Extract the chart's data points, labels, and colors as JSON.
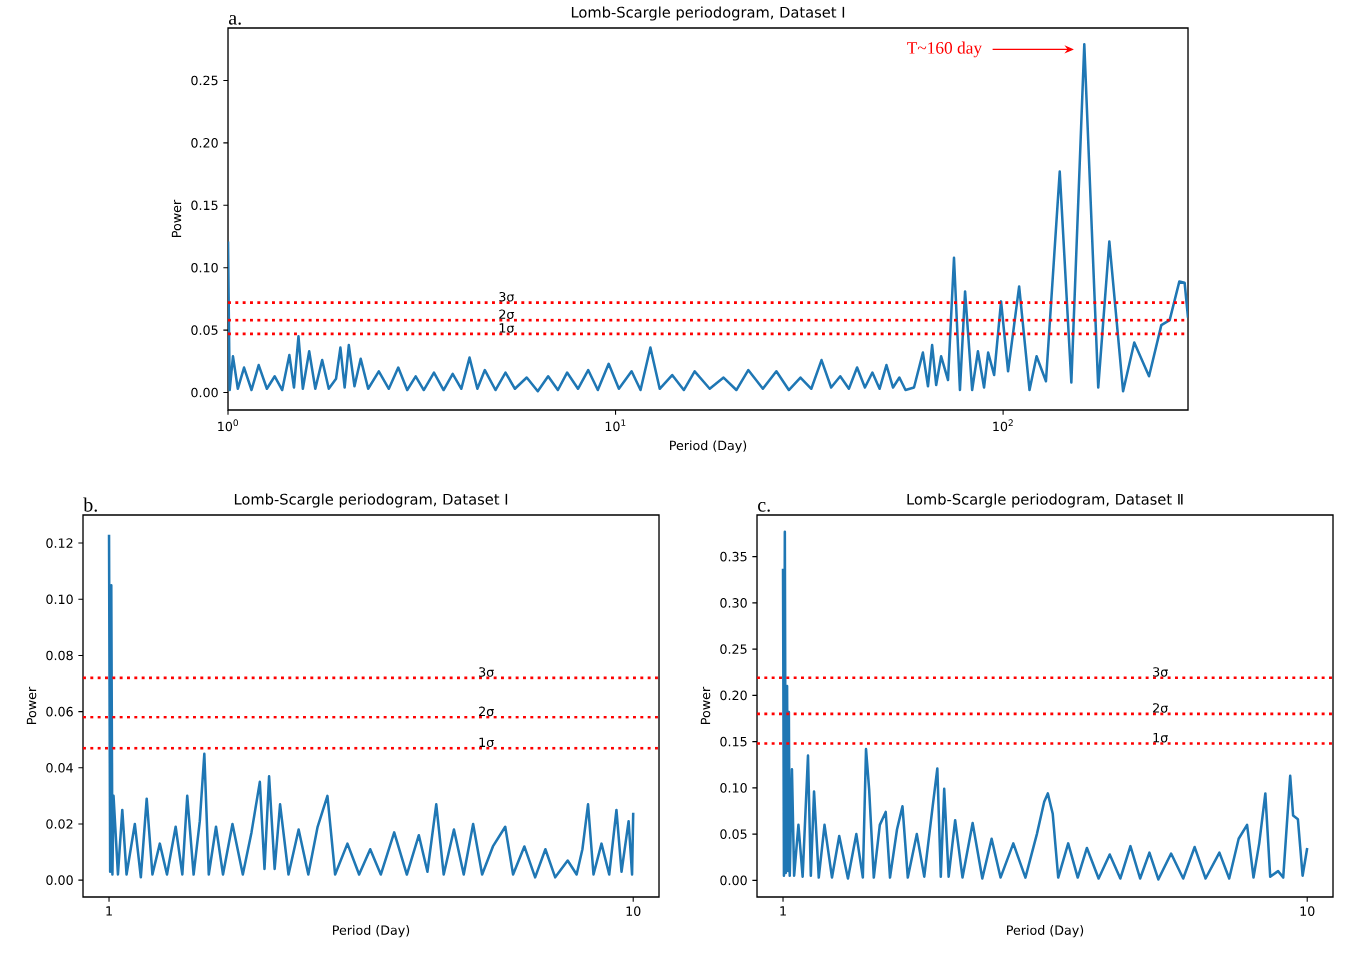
{
  "chart_data": [
    {
      "type": "line",
      "title": "Lomb-Scargle periodogram, Dataset Ⅰ",
      "xlabel": "Period (Day)",
      "ylabel": "Power",
      "log": "x",
      "color": "#1f77b4",
      "xlim": [
        1,
        300
      ],
      "ylim": [
        -0.014,
        0.292
      ],
      "xticks": [
        {
          "value": 1,
          "label": "10$^{0}$"
        },
        {
          "value": 10,
          "label": "10$^{1}$"
        },
        {
          "value": 100,
          "label": "10$^{2}$"
        }
      ],
      "yticks": [
        {
          "value": 0,
          "label": "0.00"
        },
        {
          "value": 0.05,
          "label": "0.05"
        },
        {
          "value": 0.1,
          "label": "0.10"
        },
        {
          "value": 0.15,
          "label": "0.15"
        },
        {
          "value": 0.2,
          "label": "0.20"
        },
        {
          "value": 0.25,
          "label": "0.25"
        }
      ],
      "x": [
        1.0,
        1.01,
        1.03,
        1.06,
        1.1,
        1.15,
        1.2,
        1.26,
        1.32,
        1.38,
        1.44,
        1.48,
        1.52,
        1.56,
        1.62,
        1.68,
        1.75,
        1.82,
        1.9,
        1.95,
        2.0,
        2.05,
        2.12,
        2.2,
        2.3,
        2.45,
        2.6,
        2.75,
        2.9,
        3.05,
        3.2,
        3.4,
        3.6,
        3.8,
        4.0,
        4.2,
        4.4,
        4.6,
        4.9,
        5.2,
        5.5,
        5.9,
        6.3,
        6.7,
        7.1,
        7.5,
        8.0,
        8.5,
        9.0,
        9.6,
        10.2,
        11.0,
        11.6,
        12.3,
        13.0,
        14,
        15,
        16,
        17.5,
        19,
        20.5,
        22,
        24,
        26,
        28,
        30,
        32,
        34,
        36,
        38,
        40,
        42,
        44,
        46,
        48,
        50,
        52,
        54,
        56,
        58.9,
        62.1,
        64,
        65.6,
        67.2,
        69.2,
        72.1,
        74.7,
        77.4,
        79.8,
        83.2,
        86.1,
        89.3,
        91.5,
        94.8,
        98.8,
        103,
        110,
        117,
        122,
        129,
        140,
        150,
        162,
        176,
        188,
        204,
        218,
        238,
        256,
        269,
        285,
        294,
        300
      ],
      "values": [
        0.121,
        0.002,
        0.029,
        0.003,
        0.02,
        0.002,
        0.022,
        0.003,
        0.013,
        0.002,
        0.03,
        0.004,
        0.045,
        0.003,
        0.033,
        0.003,
        0.026,
        0.003,
        0.011,
        0.036,
        0.004,
        0.038,
        0.005,
        0.027,
        0.003,
        0.017,
        0.003,
        0.02,
        0.002,
        0.013,
        0.002,
        0.016,
        0.002,
        0.015,
        0.003,
        0.028,
        0.003,
        0.018,
        0.002,
        0.016,
        0.003,
        0.012,
        0.001,
        0.013,
        0.002,
        0.016,
        0.003,
        0.018,
        0.002,
        0.023,
        0.003,
        0.017,
        0.002,
        0.036,
        0.003,
        0.014,
        0.002,
        0.017,
        0.003,
        0.012,
        0.002,
        0.018,
        0.003,
        0.017,
        0.002,
        0.012,
        0.003,
        0.026,
        0.004,
        0.013,
        0.003,
        0.02,
        0.004,
        0.016,
        0.003,
        0.022,
        0.004,
        0.012,
        0.002,
        0.004,
        0.032,
        0.005,
        0.038,
        0.006,
        0.029,
        0.01,
        0.108,
        0.002,
        0.081,
        0.002,
        0.033,
        0.004,
        0.032,
        0.014,
        0.073,
        0.017,
        0.085,
        0.002,
        0.029,
        0.009,
        0.177,
        0.008,
        0.279,
        0.004,
        0.121,
        0.001,
        0.04,
        0.013,
        0.054,
        0.058,
        0.089,
        0.088,
        0.06
      ],
      "ref_lines": [
        {
          "axis": "y",
          "value": 0.072,
          "label": "3σ",
          "color": "#ff0000",
          "line_style": "dotted"
        },
        {
          "axis": "y",
          "value": 0.058,
          "label": "2σ",
          "color": "#ff0000",
          "line_style": "dotted"
        },
        {
          "axis": "y",
          "value": 0.047,
          "label": "1σ",
          "color": "#ff0000",
          "line_style": "dotted"
        }
      ],
      "annotations": [
        "a.",
        "T~160 day"
      ]
    },
    {
      "type": "line",
      "title": "Lomb-Scargle periodogram, Dataset Ⅰ",
      "xlabel": "Period (Day)",
      "ylabel": "Power",
      "log": "x",
      "color": "#1f77b4",
      "xlim": [
        0.892,
        11.2
      ],
      "ylim": [
        -0.006,
        0.13
      ],
      "xticks": [
        1,
        10
      ],
      "yticks": [
        {
          "value": 0,
          "label": "0.00"
        },
        {
          "value": 0.02,
          "label": "0.02"
        },
        {
          "value": 0.04,
          "label": "0.04"
        },
        {
          "value": 0.06,
          "label": "0.06"
        },
        {
          "value": 0.08,
          "label": "0.08"
        },
        {
          "value": 0.1,
          "label": "0.10"
        },
        {
          "value": 0.12,
          "label": "0.12"
        }
      ],
      "x": [
        1.0,
        1.005,
        1.01,
        1.015,
        1.02,
        1.04,
        1.06,
        1.08,
        1.12,
        1.15,
        1.18,
        1.21,
        1.25,
        1.29,
        1.34,
        1.38,
        1.41,
        1.45,
        1.49,
        1.52,
        1.55,
        1.6,
        1.65,
        1.72,
        1.8,
        1.87,
        1.94,
        1.98,
        2.02,
        2.07,
        2.12,
        2.2,
        2.3,
        2.4,
        2.5,
        2.61,
        2.7,
        2.85,
        3.0,
        3.15,
        3.3,
        3.5,
        3.7,
        3.9,
        4.05,
        4.21,
        4.35,
        4.55,
        4.75,
        4.95,
        5.15,
        5.4,
        5.7,
        5.9,
        6.2,
        6.5,
        6.8,
        7.1,
        7.5,
        7.8,
        8.0,
        8.2,
        8.4,
        8.7,
        9.0,
        9.29,
        9.5,
        9.8,
        9.95,
        10.0
      ],
      "values": [
        0.123,
        0.003,
        0.105,
        0.002,
        0.03,
        0.002,
        0.025,
        0.002,
        0.02,
        0.001,
        0.029,
        0.002,
        0.013,
        0.002,
        0.019,
        0.002,
        0.03,
        0.002,
        0.021,
        0.045,
        0.002,
        0.019,
        0.002,
        0.02,
        0.002,
        0.017,
        0.035,
        0.004,
        0.037,
        0.004,
        0.027,
        0.002,
        0.018,
        0.002,
        0.019,
        0.03,
        0.002,
        0.013,
        0.002,
        0.011,
        0.002,
        0.017,
        0.002,
        0.016,
        0.003,
        0.027,
        0.002,
        0.018,
        0.002,
        0.02,
        0.002,
        0.012,
        0.019,
        0.002,
        0.012,
        0.001,
        0.011,
        0.001,
        0.007,
        0.002,
        0.011,
        0.027,
        0.002,
        0.013,
        0.002,
        0.025,
        0.003,
        0.021,
        0.002,
        0.024
      ],
      "ref_lines": [
        {
          "axis": "y",
          "value": 0.072,
          "label": "3σ",
          "color": "#ff0000",
          "line_style": "dotted"
        },
        {
          "axis": "y",
          "value": 0.058,
          "label": "2σ",
          "color": "#ff0000",
          "line_style": "dotted"
        },
        {
          "axis": "y",
          "value": 0.047,
          "label": "1σ",
          "color": "#ff0000",
          "line_style": "dotted"
        }
      ],
      "annotations": [
        "b."
      ]
    },
    {
      "type": "line",
      "title": "Lomb-Scargle periodogram, Dataset Ⅱ",
      "xlabel": "Period (Day)",
      "ylabel": "Power",
      "log": "x",
      "color": "#1f77b4",
      "xlim": [
        0.892,
        11.2
      ],
      "ylim": [
        -0.018,
        0.395
      ],
      "xticks": [
        1,
        10
      ],
      "yticks": [
        {
          "value": 0,
          "label": "0.00"
        },
        {
          "value": 0.05,
          "label": "0.05"
        },
        {
          "value": 0.1,
          "label": "0.10"
        },
        {
          "value": 0.15,
          "label": "0.15"
        },
        {
          "value": 0.2,
          "label": "0.20"
        },
        {
          "value": 0.25,
          "label": "0.25"
        },
        {
          "value": 0.3,
          "label": "0.30"
        },
        {
          "value": 0.35,
          "label": "0.35"
        }
      ],
      "x": [
        1.0,
        1.004,
        1.008,
        1.012,
        1.018,
        1.022,
        1.026,
        1.03,
        1.04,
        1.05,
        1.07,
        1.09,
        1.116,
        1.13,
        1.146,
        1.17,
        1.2,
        1.24,
        1.28,
        1.33,
        1.38,
        1.42,
        1.44,
        1.46,
        1.49,
        1.53,
        1.57,
        1.6,
        1.65,
        1.69,
        1.73,
        1.8,
        1.86,
        1.93,
        1.97,
        2.0,
        2.03,
        2.07,
        2.13,
        2.2,
        2.3,
        2.4,
        2.5,
        2.6,
        2.75,
        2.9,
        3.05,
        3.15,
        3.2,
        3.27,
        3.35,
        3.5,
        3.65,
        3.8,
        4.0,
        4.2,
        4.4,
        4.6,
        4.8,
        5.0,
        5.2,
        5.5,
        5.8,
        6.1,
        6.4,
        6.8,
        7.1,
        7.4,
        7.68,
        7.9,
        8.1,
        8.32,
        8.5,
        8.8,
        9.0,
        9.28,
        9.4,
        9.6,
        9.8,
        10.0
      ],
      "values": [
        0.337,
        0.005,
        0.377,
        0.008,
        0.21,
        0.01,
        0.182,
        0.005,
        0.12,
        0.005,
        0.06,
        0.004,
        0.135,
        0.005,
        0.096,
        0.003,
        0.06,
        0.003,
        0.048,
        0.002,
        0.05,
        0.003,
        0.142,
        0.098,
        0.003,
        0.06,
        0.074,
        0.003,
        0.055,
        0.08,
        0.003,
        0.05,
        0.004,
        0.08,
        0.121,
        0.004,
        0.099,
        0.004,
        0.065,
        0.003,
        0.062,
        0.002,
        0.045,
        0.003,
        0.04,
        0.003,
        0.05,
        0.085,
        0.094,
        0.072,
        0.003,
        0.04,
        0.003,
        0.035,
        0.002,
        0.028,
        0.002,
        0.037,
        0.002,
        0.03,
        0.001,
        0.029,
        0.002,
        0.036,
        0.002,
        0.03,
        0.002,
        0.045,
        0.06,
        0.003,
        0.04,
        0.094,
        0.004,
        0.01,
        0.003,
        0.113,
        0.07,
        0.066,
        0.005,
        0.035
      ],
      "ref_lines": [
        {
          "axis": "y",
          "value": 0.219,
          "label": "3σ",
          "color": "#ff0000",
          "line_style": "dotted"
        },
        {
          "axis": "y",
          "value": 0.18,
          "label": "2σ",
          "color": "#ff0000",
          "line_style": "dotted"
        },
        {
          "axis": "y",
          "value": 0.148,
          "label": "1σ",
          "color": "#ff0000",
          "line_style": "dotted"
        }
      ],
      "annotations": [
        "c."
      ]
    }
  ]
}
